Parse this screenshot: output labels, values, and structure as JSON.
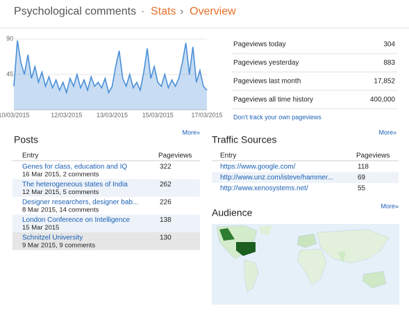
{
  "header": {
    "blog": "Psychological comments",
    "dot": "·",
    "stats": "Stats",
    "arrow": "›",
    "page": "Overview"
  },
  "chart_data": {
    "type": "area",
    "color": "#4a8fd8",
    "categories": [
      "10/03/2015",
      null,
      null,
      null,
      null,
      null,
      null,
      null,
      null,
      null,
      null,
      null,
      null,
      null,
      null,
      "12/03/2015",
      null,
      null,
      null,
      null,
      null,
      null,
      null,
      null,
      null,
      null,
      null,
      null,
      "13/03/2015",
      null,
      null,
      null,
      null,
      null,
      null,
      null,
      null,
      null,
      null,
      null,
      null,
      "15/03/2015",
      null,
      null,
      null,
      null,
      null,
      null,
      null,
      null,
      null,
      null,
      null,
      null,
      null,
      "17/03/2015"
    ],
    "values": [
      30,
      88,
      60,
      45,
      70,
      40,
      55,
      35,
      48,
      30,
      42,
      28,
      38,
      25,
      35,
      22,
      40,
      30,
      45,
      28,
      38,
      25,
      42,
      30,
      35,
      28,
      40,
      22,
      30,
      55,
      75,
      40,
      30,
      45,
      28,
      35,
      25,
      48,
      78,
      40,
      55,
      35,
      30,
      45,
      28,
      38,
      30,
      40,
      60,
      85,
      45,
      80,
      35,
      50,
      30,
      25
    ],
    "ylim": [
      0,
      90
    ],
    "yticks": [
      45,
      90
    ],
    "grid": true
  },
  "summary": {
    "rows": [
      [
        "Pageviews today",
        "304"
      ],
      [
        "Pageviews yesterday",
        "883"
      ],
      [
        "Pageviews last month",
        "17,852"
      ],
      [
        "Pageviews all time history",
        "400,000"
      ]
    ],
    "note": "Don't track your own pageviews",
    "more": "More»"
  },
  "posts": {
    "title": "Posts",
    "more": "More»",
    "columns": [
      "Entry",
      "Pageviews"
    ],
    "rows": [
      {
        "title": "Genes for class, education and IQ",
        "meta": "16 Mar 2015, 2 comments",
        "views": "322"
      },
      {
        "title": "The heterogeneous states of India",
        "meta": "12 Mar 2015, 5 comments",
        "views": "262"
      },
      {
        "title": "Designer researchers, designer bab...",
        "meta": "8 Mar 2015, 14 comments",
        "views": "226"
      },
      {
        "title": "London Conference on Intelligence",
        "meta": "15 Mar 2015",
        "views": "138"
      },
      {
        "title": "Schnitzel University",
        "meta": "9 Mar 2015, 9 comments",
        "views": "130"
      }
    ]
  },
  "traffic": {
    "title": "Traffic Sources",
    "columns": [
      "Entry",
      "Pageviews"
    ],
    "rows": [
      [
        "https://www.google.com/",
        "118"
      ],
      [
        "http://www.unz.com/isteve/hammer...",
        "69"
      ],
      [
        "http://www.xenosystems.net/",
        "55"
      ]
    ]
  },
  "audience": {
    "title": "Audience",
    "more": "More»"
  }
}
